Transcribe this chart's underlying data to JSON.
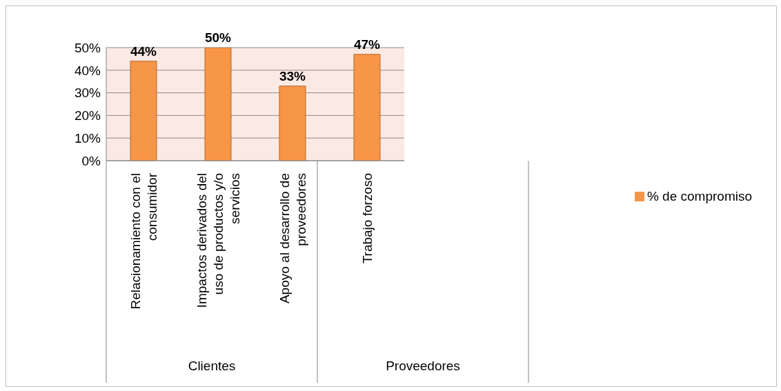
{
  "chart_data": {
    "type": "bar",
    "categories": [
      "Relacionamiento con el consumidor",
      "Impactos derivados del uso de productos y/o servicios",
      "Apoyo al desarrollo de proveedores",
      "Trabajo forzoso"
    ],
    "series": [
      {
        "name": "% de compromiso",
        "color": "#f79646",
        "values": [
          44,
          50,
          33,
          47
        ]
      }
    ],
    "value_labels": [
      "44%",
      "50%",
      "33%",
      "47%"
    ],
    "ylim": [
      0,
      50
    ],
    "yticks": [
      {
        "value": 0,
        "label": "0%"
      },
      {
        "value": 10,
        "label": "10%"
      },
      {
        "value": 20,
        "label": "20%"
      },
      {
        "value": 30,
        "label": "30%"
      },
      {
        "value": 40,
        "label": "40%"
      },
      {
        "value": 50,
        "label": "50%"
      }
    ],
    "annotations": [
      "Clientes",
      "Proveedores"
    ],
    "grid": "y",
    "legend": "right"
  }
}
